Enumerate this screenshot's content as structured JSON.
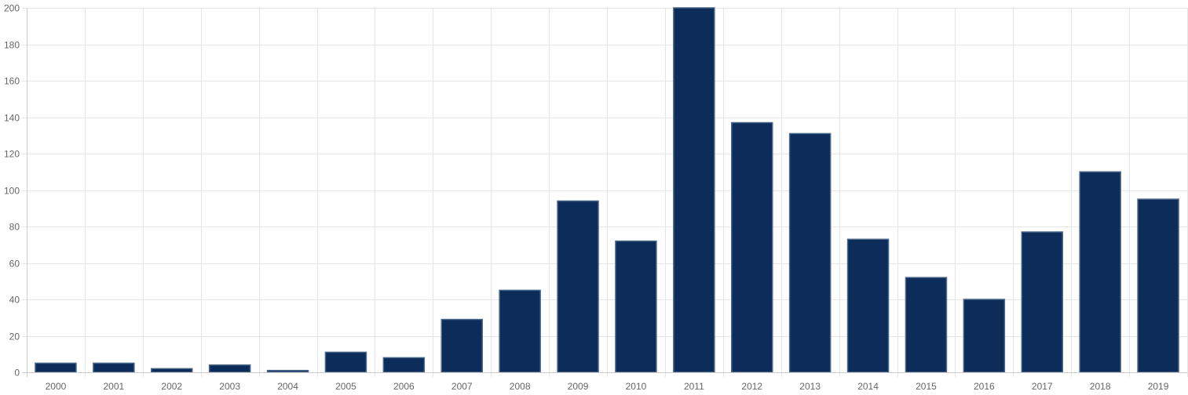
{
  "chart_data": {
    "type": "bar",
    "categories": [
      "2000",
      "2001",
      "2002",
      "2003",
      "2004",
      "2005",
      "2006",
      "2007",
      "2008",
      "2009",
      "2010",
      "2011",
      "2012",
      "2013",
      "2014",
      "2015",
      "2016",
      "2017",
      "2018",
      "2019"
    ],
    "values": [
      5,
      5,
      2,
      4,
      1,
      11,
      8,
      29,
      45,
      94,
      72,
      200,
      137,
      131,
      73,
      52,
      40,
      77,
      110,
      95
    ],
    "ylim": [
      0,
      200
    ],
    "yticks": [
      0,
      20,
      40,
      60,
      80,
      100,
      120,
      140,
      160,
      180,
      200
    ],
    "grid": true,
    "bar_color": "#0c2c5a",
    "title": "",
    "xlabel": "",
    "ylabel": ""
  }
}
